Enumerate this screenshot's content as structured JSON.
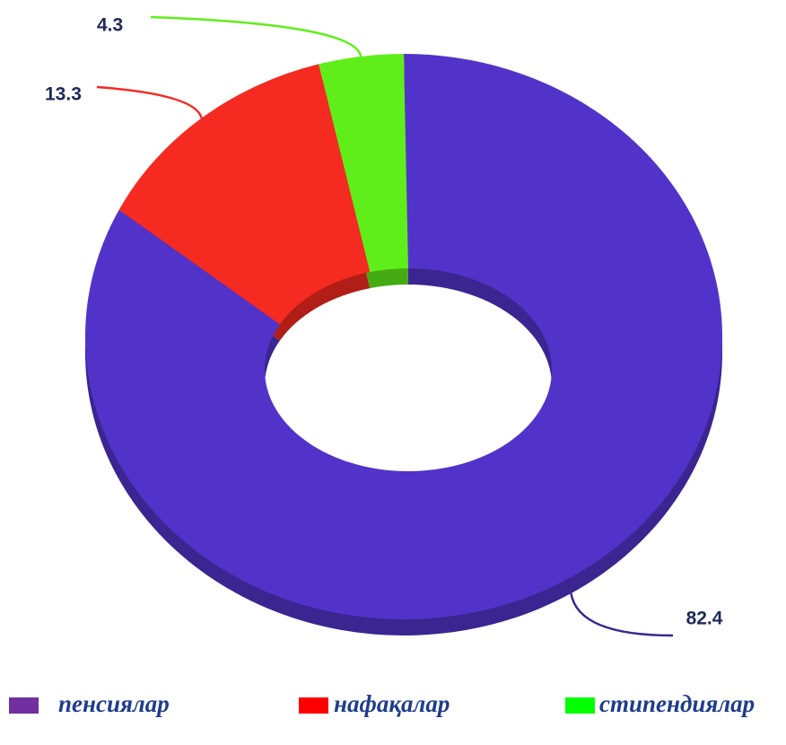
{
  "chart_data": {
    "type": "donut",
    "categories": [
      "пенсиялар",
      "нафақалар",
      "стипендиялар"
    ],
    "values": [
      82.4,
      13.3,
      4.3
    ],
    "colors": [
      "#5233c9",
      "#f52a20",
      "#60ee1a"
    ],
    "legend_colors": [
      "#7030a0",
      "#ff0000",
      "#00ff00"
    ]
  }
}
